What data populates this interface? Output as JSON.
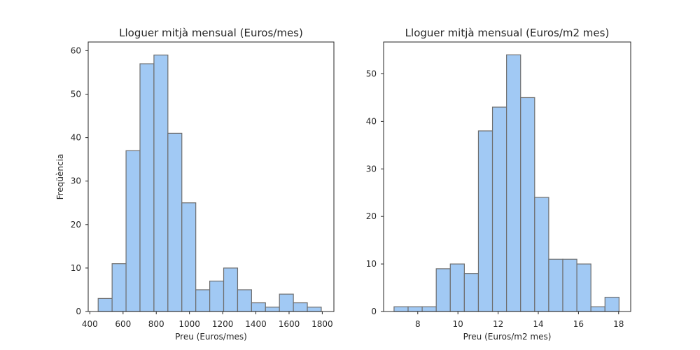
{
  "chart_data": [
    {
      "type": "bar",
      "subtype": "histogram",
      "title": "Lloguer mitjà mensual (Euros/mes)",
      "xlabel": "Preu (Euros/mes)",
      "ylabel": "Freqüència",
      "xlim": [
        390,
        1870
      ],
      "ylim": [
        0,
        62
      ],
      "xticks": [
        400,
        600,
        800,
        1000,
        1200,
        1400,
        1600,
        1800
      ],
      "yticks": [
        0,
        10,
        20,
        30,
        40,
        50,
        60
      ],
      "bin_edges": [
        450,
        534,
        618,
        702,
        786,
        870,
        954,
        1038,
        1122,
        1206,
        1290,
        1374,
        1458,
        1542,
        1626,
        1710,
        1794
      ],
      "values": [
        3,
        11,
        37,
        57,
        59,
        41,
        25,
        5,
        7,
        10,
        5,
        2,
        1,
        4,
        2,
        1
      ],
      "color": "#a1c9f4",
      "edge_color": "#6e6e6e",
      "grid": false
    },
    {
      "type": "bar",
      "subtype": "histogram",
      "title": "Lloguer mitjà mensual (Euros/m2 mes)",
      "xlabel": "Preu (Euros/m2 mes)",
      "ylabel": "",
      "xlim": [
        6.3,
        18.6
      ],
      "ylim": [
        0,
        56.7
      ],
      "xticks": [
        8,
        10,
        12,
        14,
        16,
        18
      ],
      "yticks": [
        0,
        10,
        20,
        30,
        40,
        50
      ],
      "bin_edges": [
        6.82,
        7.52,
        8.22,
        8.92,
        9.62,
        10.32,
        11.02,
        11.72,
        12.42,
        13.12,
        13.82,
        14.52,
        15.22,
        15.92,
        16.62,
        17.32,
        18.02
      ],
      "values": [
        1,
        1,
        1,
        9,
        10,
        8,
        38,
        43,
        54,
        45,
        24,
        11,
        11,
        10,
        1,
        3
      ],
      "color": "#a1c9f4",
      "edge_color": "#6e6e6e",
      "grid": false
    }
  ]
}
